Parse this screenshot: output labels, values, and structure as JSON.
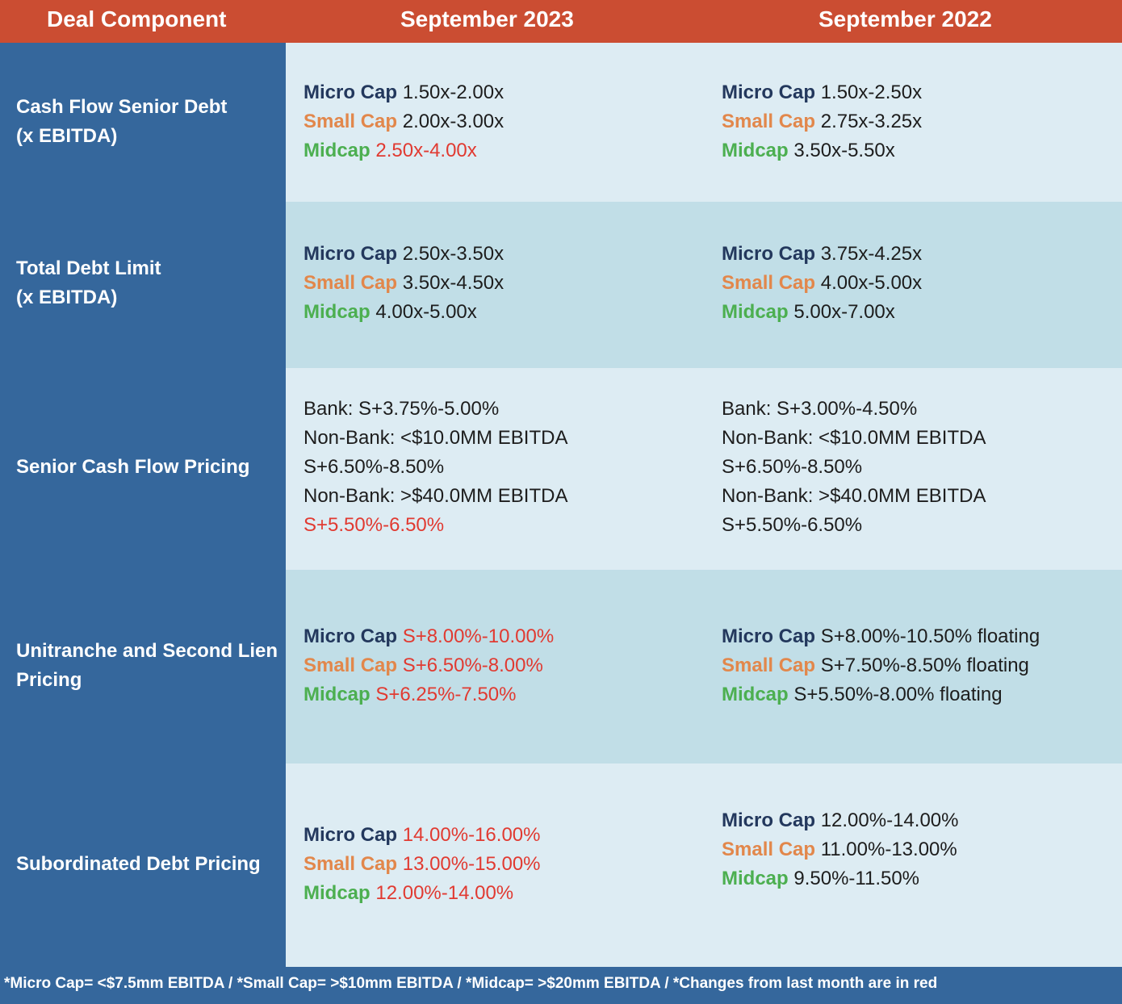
{
  "header": {
    "col1": "Deal Component",
    "col2": "September 2023",
    "col3": "September 2022"
  },
  "colors": {
    "header_bg": "#cb4d32",
    "left_bg": "#35679c",
    "row_light": "#ddecf3",
    "row_dark": "#c1dee7",
    "micro": "#23385d",
    "small": "#e2874b",
    "mid": "#4caf50",
    "changed": "#e13a31"
  },
  "tiers": {
    "micro": "Micro Cap",
    "small": "Small Cap",
    "mid": "Midcap"
  },
  "rows": [
    {
      "label_lines": [
        "Cash Flow Senior Debt",
        "(x EBITDA)"
      ],
      "sep2023": {
        "micro": "1.50x-2.00x",
        "small": "2.00x-3.00x",
        "mid": "2.50x-4.00x"
      },
      "sep2022": {
        "micro": "1.50x-2.50x",
        "small": "2.75x-3.25x",
        "mid": "3.50x-5.50x"
      }
    },
    {
      "label_lines": [
        "Total Debt Limit",
        "(x EBITDA)"
      ],
      "sep2023": {
        "micro": "2.50x-3.50x",
        "small": "3.50x-4.50x",
        "mid": "4.00x-5.00x"
      },
      "sep2022": {
        "micro": "3.75x-4.25x",
        "small": "4.00x-5.00x",
        "mid": "5.00x-7.00x"
      }
    },
    {
      "label": "Senior Cash Flow Pricing",
      "sep2023": {
        "bank": "Bank: S+3.75%-5.00%",
        "nonbank_small_prefix": "Non-Bank: <$10.0MM EBITDA ",
        "nonbank_small_value": "S+6.50%-8.50%",
        "nonbank_large_prefix": "Non-Bank: >$40.0MM EBITDA ",
        "nonbank_large_value": "S+5.50%-6.50%"
      },
      "sep2022": {
        "bank": "Bank: S+3.00%-4.50%",
        "nonbank_small": "Non-Bank: <$10.0MM EBITDA S+6.50%-8.50%",
        "nonbank_large": "Non-Bank: >$40.0MM EBITDA S+5.50%-6.50%"
      }
    },
    {
      "label": "Unitranche and Second Lien Pricing",
      "sep2023": {
        "micro": "S+8.00%-10.00%",
        "small": "S+6.50%-8.00%",
        "mid": "S+6.25%-7.50%"
      },
      "sep2022": {
        "micro": "S+8.00%-10.50% floating",
        "small": "S+7.50%-8.50% floating",
        "mid": "S+5.50%-8.00% floating"
      }
    },
    {
      "label": "Subordinated Debt Pricing",
      "sep2023": {
        "micro": "14.00%-16.00%",
        "small": "13.00%-15.00%",
        "mid": "12.00%-14.00%"
      },
      "sep2022": {
        "micro": "12.00%-14.00%",
        "small": "11.00%-13.00%",
        "mid": "9.50%-11.50%"
      }
    }
  ],
  "footer": "*Micro Cap= <$7.5mm EBITDA / *Small Cap= >$10mm EBITDA / *Midcap= >$20mm EBITDA / *Changes from last month are in red"
}
